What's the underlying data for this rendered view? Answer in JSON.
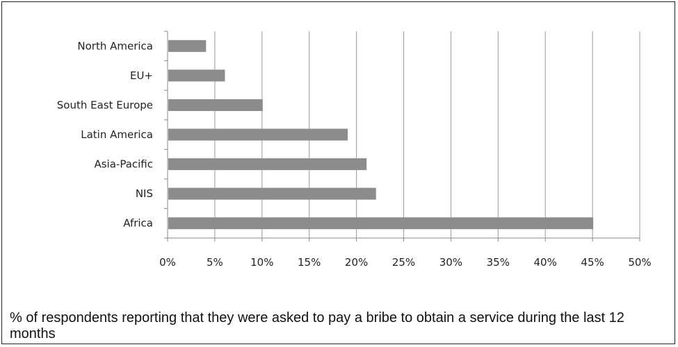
{
  "chart_data": {
    "type": "bar",
    "orientation": "horizontal",
    "categories": [
      "North America",
      "EU+",
      "South East Europe",
      "Latin America",
      "Asia-Pacific",
      "NIS",
      "Africa"
    ],
    "values": [
      4,
      6,
      10,
      19,
      21,
      22,
      45
    ],
    "xlim": [
      0,
      50
    ],
    "x_ticks": [
      "0%",
      "5%",
      "10%",
      "15%",
      "20%",
      "25%",
      "30%",
      "35%",
      "40%",
      "45%",
      "50%"
    ],
    "grid": "vertical",
    "bar_color": "#8c8c8c"
  },
  "caption": "% of respondents reporting that they were asked to pay a bribe to obtain a service during the last 12 months"
}
